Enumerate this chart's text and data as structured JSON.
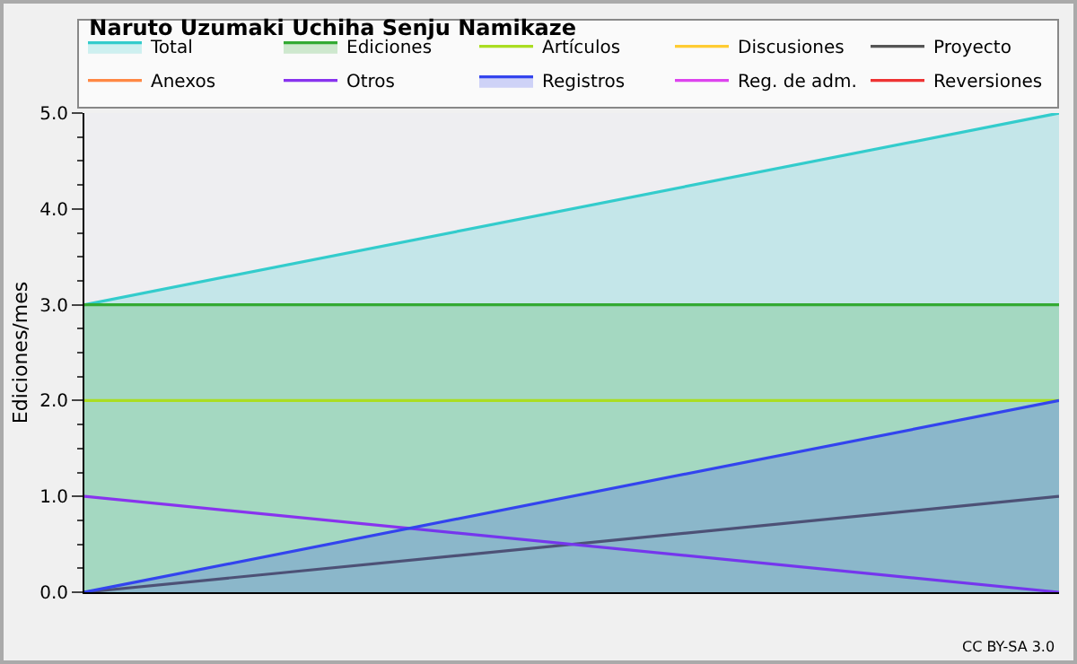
{
  "chart_data": {
    "type": "line",
    "title": "Naruto Uzumaki Uchiha Senju Namikaze",
    "ylabel": "Ediciones/mes",
    "categories": [
      null,
      null
    ],
    "series": [
      {
        "name": "Total",
        "type": "area",
        "color": "#33cccc",
        "values": [
          3,
          5
        ]
      },
      {
        "name": "Ediciones",
        "type": "area",
        "color": "#33aa33",
        "values": [
          3,
          3
        ]
      },
      {
        "name": "Artículos",
        "color": "#aadd22",
        "values": [
          2,
          2
        ]
      },
      {
        "name": "Discusiones",
        "color": "#ffcc33",
        "values": [
          null,
          null
        ]
      },
      {
        "name": "Proyecto",
        "color": "#555555",
        "values": [
          0,
          1
        ]
      },
      {
        "name": "Anexos",
        "color": "#ff8844",
        "values": [
          null,
          null
        ]
      },
      {
        "name": "Otros",
        "color": "#8833ee",
        "values": [
          1,
          0
        ]
      },
      {
        "name": "Registros",
        "type": "area",
        "color": "#3344ee",
        "values": [
          0,
          2
        ]
      },
      {
        "name": "Reg. de adm.",
        "color": "#dd44ee",
        "values": [
          null,
          null
        ]
      },
      {
        "name": "Reversiones",
        "color": "#ee3333",
        "values": [
          null,
          null
        ]
      }
    ],
    "ylim": [
      0,
      5
    ],
    "yticks": [
      {
        "value": 0,
        "label": "0.0"
      },
      {
        "value": 1,
        "label": "1.0"
      },
      {
        "value": 2,
        "label": "2.0"
      },
      {
        "value": 3,
        "label": "3.0"
      },
      {
        "value": 4,
        "label": "4.0"
      },
      {
        "value": 5,
        "label": "5.0"
      }
    ],
    "grid": false,
    "legend": "top right",
    "marker": "none",
    "line_style": "solid",
    "annotations": [
      "CC BY-SA 3.0"
    ]
  }
}
